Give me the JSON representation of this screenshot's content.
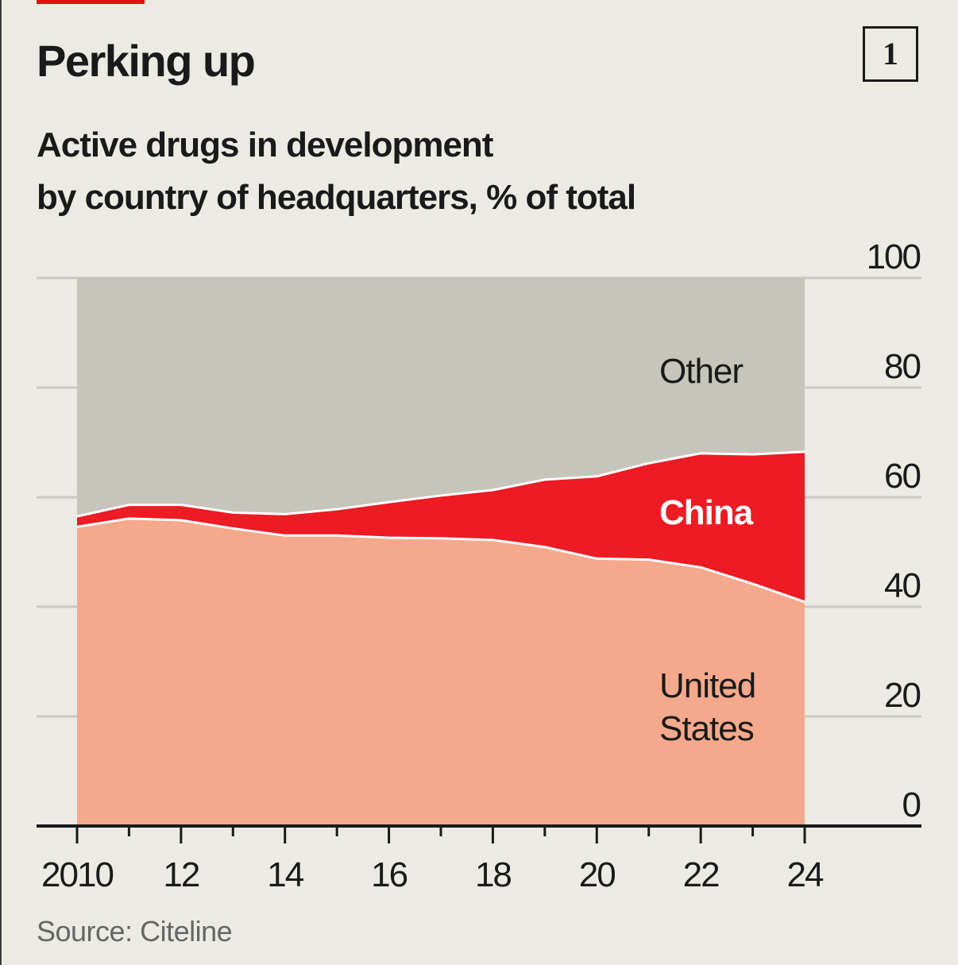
{
  "header": {
    "title": "Perking up",
    "chart_number": "1",
    "subtitle_line1": "Active drugs in development",
    "subtitle_line2": "by country of headquarters, % of total"
  },
  "footer": {
    "source": "Source: Citeline"
  },
  "colors": {
    "background": "#ecebe3",
    "other": "#c5c5bb",
    "china": "#ec1b24",
    "united_states": "#f5a98c",
    "accent": "#e3120b",
    "gridline": "#c9c9c2",
    "axis": "#1a1a1a"
  },
  "chart_data": {
    "type": "area",
    "stacked": true,
    "title": "Perking up",
    "subtitle": "Active drugs in development by country of headquarters, % of total",
    "xlabel": "",
    "ylabel": "% of total",
    "x": [
      2010,
      2011,
      2012,
      2013,
      2014,
      2015,
      2016,
      2017,
      2018,
      2019,
      2020,
      2021,
      2022,
      2023,
      2024
    ],
    "series": [
      {
        "name": "United States",
        "label_lines": [
          "United",
          "States"
        ],
        "values": [
          54.6,
          56.1,
          55.8,
          54.3,
          53.0,
          53.0,
          52.6,
          52.5,
          52.2,
          50.9,
          48.8,
          48.6,
          47.2,
          44.2,
          40.9
        ]
      },
      {
        "name": "China",
        "label_lines": [
          "China"
        ],
        "values": [
          1.9,
          2.5,
          2.8,
          2.9,
          3.9,
          4.8,
          6.5,
          7.8,
          9.1,
          12.3,
          15.0,
          17.6,
          20.8,
          23.6,
          27.4
        ]
      },
      {
        "name": "Other",
        "label_lines": [
          "Other"
        ],
        "values": [
          43.5,
          41.4,
          41.4,
          42.8,
          43.1,
          42.2,
          40.9,
          39.7,
          38.7,
          36.8,
          36.2,
          33.8,
          32.0,
          32.2,
          31.7
        ]
      }
    ],
    "ylim": [
      0,
      100
    ],
    "xlim": [
      2010,
      2024
    ],
    "y_ticks": [
      0,
      20,
      40,
      60,
      80,
      100
    ],
    "x_ticks": [
      2010,
      2012,
      2014,
      2016,
      2018,
      2020,
      2022,
      2024
    ],
    "x_tick_labels": [
      "2010",
      "12",
      "14",
      "16",
      "18",
      "20",
      "22",
      "24"
    ],
    "x_minor_ticks": [
      2011,
      2013,
      2015,
      2017,
      2019,
      2021,
      2023
    ],
    "y_axis_side": "right",
    "grid": true,
    "legend": "inline labels"
  }
}
